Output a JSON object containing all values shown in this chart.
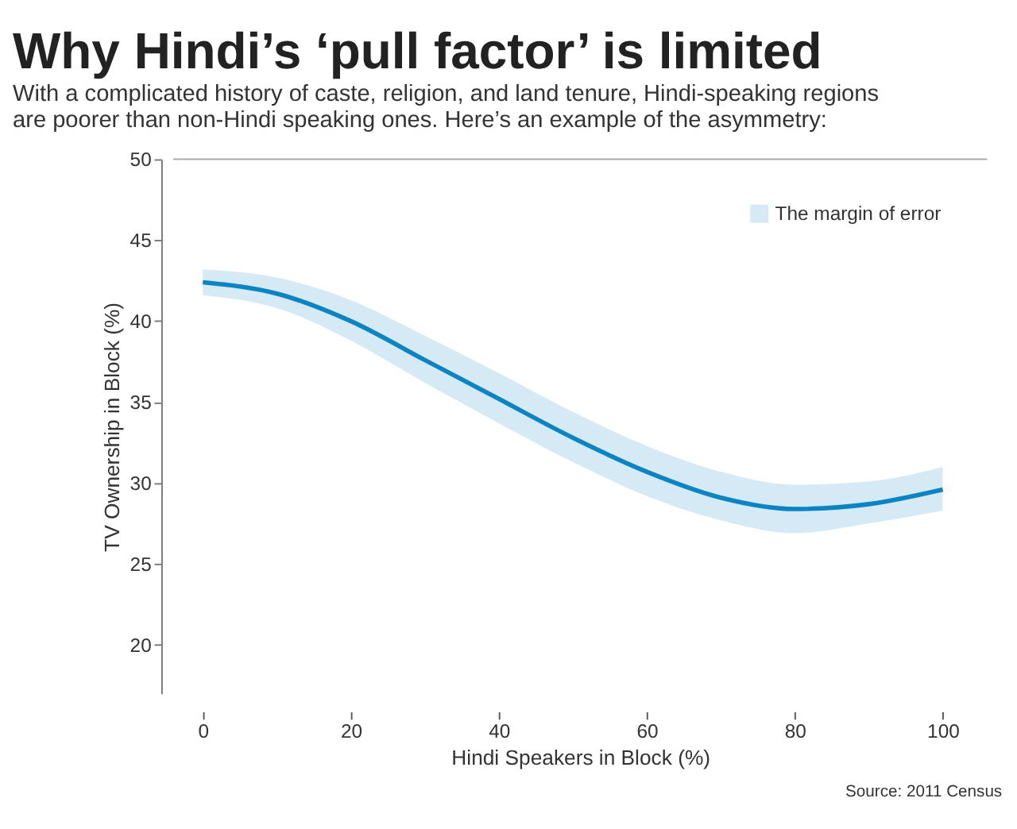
{
  "chart_data": {
    "type": "line",
    "title": "Why Hindi’s ‘pull factor’ is limited",
    "subtitle": [
      "With a complicated history of caste, religion, and land tenure, Hindi-speaking regions",
      "are poorer than non-Hindi speaking ones. Here’s an example of the asymmetry:"
    ],
    "xlabel": "Hindi Speakers in Block (%)",
    "ylabel": "TV Ownership in Block (%)",
    "x": [
      0,
      10,
      20,
      30,
      40,
      50,
      60,
      70,
      80,
      90,
      100
    ],
    "series": [
      {
        "name": "The margin of error",
        "color": "#0a84c2",
        "values": [
          42.4,
          41.7,
          40.0,
          37.6,
          35.2,
          32.8,
          30.7,
          29.1,
          28.4,
          28.7,
          29.6
        ],
        "lower": [
          41.6,
          40.8,
          38.8,
          36.2,
          33.7,
          31.3,
          29.2,
          27.7,
          26.9,
          27.5,
          28.3
        ],
        "upper": [
          43.2,
          42.7,
          41.3,
          39.1,
          36.8,
          34.4,
          32.3,
          30.7,
          29.9,
          30.1,
          31.0
        ]
      }
    ],
    "xlim": [
      -4,
      106
    ],
    "ylim": [
      17,
      50
    ],
    "xticks": [
      0,
      20,
      40,
      60,
      80,
      100
    ],
    "yticks": [
      20,
      25,
      30,
      35,
      40,
      45,
      50
    ],
    "legend": "top right",
    "annotations": [
      "Source: 2011 Census"
    ]
  }
}
